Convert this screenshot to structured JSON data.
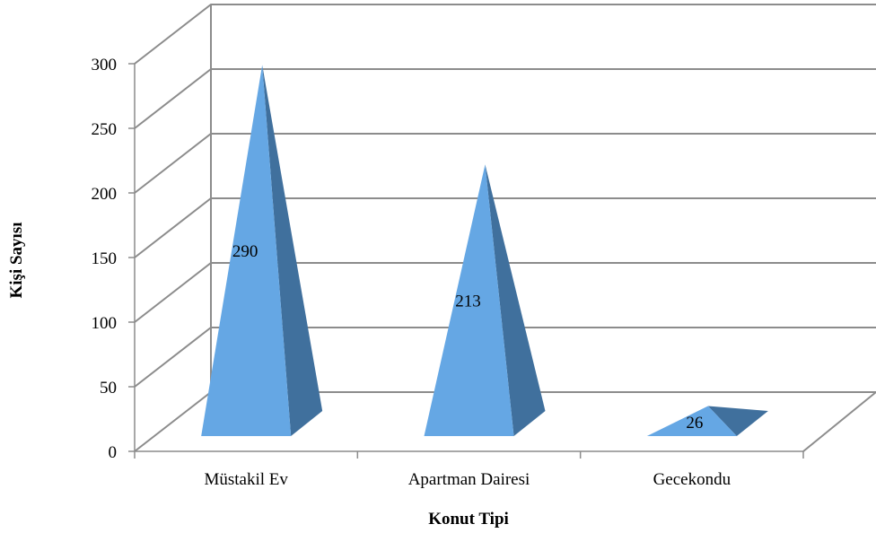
{
  "chart_data": {
    "type": "bar",
    "style": "3d-pyramid",
    "categories": [
      "Müstakil Ev",
      "Apartman Dairesi",
      "Gecekondu"
    ],
    "values": [
      290,
      213,
      26
    ],
    "data_labels": [
      "290",
      "213",
      "26"
    ],
    "xlabel": "Konut Tipi",
    "ylabel": "Kişi Sayısı",
    "ylim": [
      0,
      300
    ],
    "yticks": [
      "0",
      "50",
      "100",
      "150",
      "200",
      "250",
      "300"
    ],
    "grid": true,
    "legend": "none"
  },
  "colors": {
    "front": "#65A7E4",
    "side": "#40709D",
    "grid": "#8C8C8C",
    "axis": "#8C8C8C"
  }
}
